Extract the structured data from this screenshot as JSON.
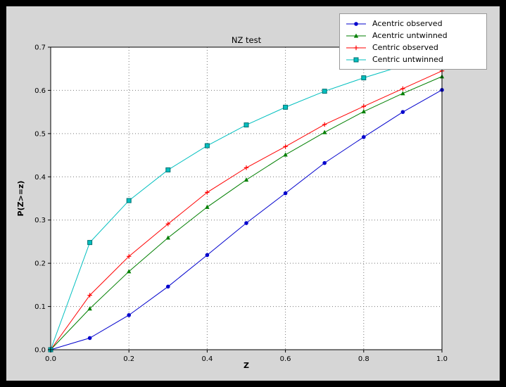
{
  "colors": {
    "frame": "#000000",
    "figure_bg": "#d6d6d6",
    "plot_bg": "#ffffff",
    "grid": "#777777",
    "axis": "#000000",
    "legend_bg": "#ffffff",
    "legend_border": "#999999"
  },
  "chart_data": {
    "type": "line",
    "title": "NZ test",
    "xlabel": "Z",
    "ylabel": "P(Z>=z)",
    "xlim": [
      0.0,
      1.0
    ],
    "ylim": [
      0.0,
      0.7
    ],
    "grid": true,
    "legend_position": "upper right",
    "xticks": [
      0.0,
      0.2,
      0.4,
      0.6,
      0.8,
      1.0
    ],
    "xtick_labels": [
      "0.0",
      "0.2",
      "0.4",
      "0.6",
      "0.8",
      "1.0"
    ],
    "yticks": [
      0.0,
      0.1,
      0.2,
      0.3,
      0.4,
      0.5,
      0.6,
      0.7
    ],
    "ytick_labels": [
      "0.0",
      "0.1",
      "0.2",
      "0.3",
      "0.4",
      "0.5",
      "0.6",
      "0.7"
    ],
    "x": [
      0.0,
      0.1,
      0.2,
      0.3,
      0.4,
      0.5,
      0.6,
      0.7,
      0.8,
      0.9,
      1.0
    ],
    "series": [
      {
        "name": "Acentric observed",
        "color": "#0000cd",
        "marker": "circle",
        "values": [
          0.0,
          0.027,
          0.08,
          0.146,
          0.219,
          0.293,
          0.362,
          0.432,
          0.492,
          0.55,
          0.601
        ]
      },
      {
        "name": "Acentric untwinned",
        "color": "#007f00",
        "marker": "triangle",
        "values": [
          0.0,
          0.095,
          0.181,
          0.259,
          0.33,
          0.393,
          0.451,
          0.503,
          0.551,
          0.593,
          0.632
        ]
      },
      {
        "name": "Centric observed",
        "color": "#ff0000",
        "marker": "plus",
        "values": [
          0.0,
          0.126,
          0.216,
          0.291,
          0.364,
          0.421,
          0.47,
          0.521,
          0.563,
          0.604,
          0.645
        ]
      },
      {
        "name": "Centric untwinned",
        "color": "#00bfbf",
        "marker": "square",
        "marker_edge": "#006f6f",
        "values": [
          0.0,
          0.248,
          0.345,
          0.416,
          0.472,
          0.52,
          0.561,
          0.598,
          0.629,
          0.657,
          0.683
        ]
      }
    ]
  }
}
